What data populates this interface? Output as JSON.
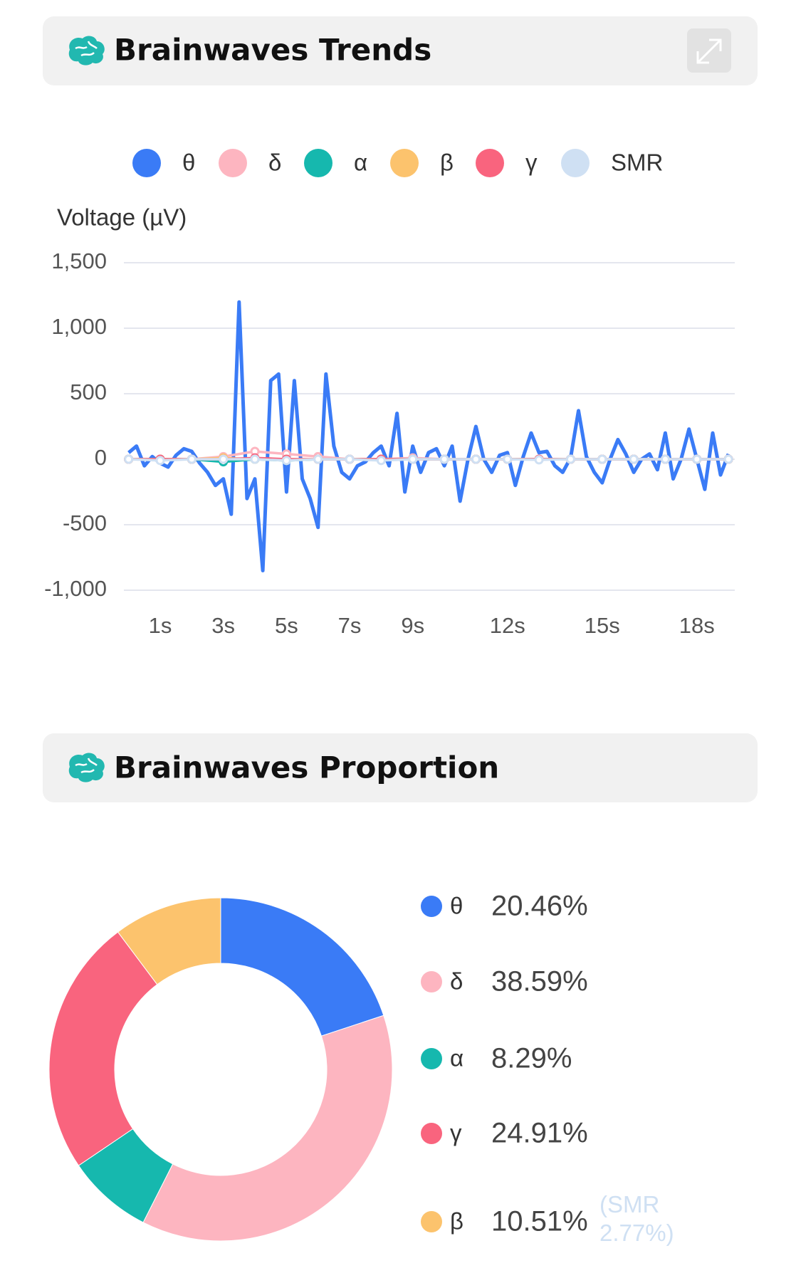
{
  "chart_data": [
    {
      "type": "line",
      "title": "Brainwaves Trends",
      "y_label": "Voltage (µV)",
      "xlim": [
        -0.15,
        19.2
      ],
      "xticks": [
        {
          "value": 1,
          "label": "1s"
        },
        {
          "value": 3,
          "label": "3s"
        },
        {
          "value": 5,
          "label": "5s"
        },
        {
          "value": 7,
          "label": "7s"
        },
        {
          "value": 9,
          "label": "9s"
        },
        {
          "value": 12,
          "label": "12s"
        },
        {
          "value": 15,
          "label": "15s"
        },
        {
          "value": 18,
          "label": "18s"
        }
      ],
      "ylim": [
        -1000,
        1500
      ],
      "yticks": [
        {
          "value": -1000,
          "label": "-1,000"
        },
        -500,
        0,
        500,
        {
          "value": 1000,
          "label": "1,000"
        },
        {
          "value": 1500,
          "label": "1,500"
        }
      ],
      "grid": true,
      "x": [
        0,
        1,
        2,
        3,
        4,
        5,
        6,
        7,
        8,
        9,
        10,
        11,
        12,
        13,
        14,
        15,
        16,
        17,
        18,
        19
      ],
      "series": [
        {
          "name": "θ",
          "color": "#3a7bf6",
          "x": [
            0,
            0.25,
            0.5,
            0.75,
            1,
            1.25,
            1.5,
            1.75,
            2,
            2.25,
            2.5,
            2.75,
            3,
            3.25,
            3.5,
            3.75,
            4,
            4.25,
            4.5,
            4.75,
            5,
            5.25,
            5.5,
            5.75,
            6,
            6.25,
            6.5,
            6.75,
            7,
            7.25,
            7.5,
            7.75,
            8,
            8.25,
            8.5,
            8.75,
            9,
            9.25,
            9.5,
            9.75,
            10,
            10.25,
            10.5,
            10.75,
            11,
            11.25,
            11.5,
            11.75,
            12,
            12.25,
            12.5,
            12.75,
            13,
            13.25,
            13.5,
            13.75,
            14,
            14.25,
            14.5,
            14.75,
            15,
            15.25,
            15.5,
            15.75,
            16,
            16.25,
            16.5,
            16.75,
            17,
            17.25,
            17.5,
            17.75,
            18,
            18.25,
            18.5,
            18.75,
            19
          ],
          "values": [
            50,
            100,
            -50,
            20,
            -30,
            -60,
            30,
            80,
            60,
            -30,
            -100,
            -200,
            -150,
            -420,
            1200,
            -300,
            -150,
            -850,
            600,
            650,
            -250,
            600,
            -150,
            -300,
            -520,
            650,
            100,
            -100,
            -150,
            -50,
            -20,
            50,
            100,
            -50,
            350,
            -250,
            100,
            -100,
            50,
            80,
            -50,
            100,
            -320,
            0,
            250,
            0,
            -100,
            30,
            50,
            -200,
            20,
            200,
            50,
            60,
            -50,
            -100,
            10,
            370,
            20,
            -100,
            -180,
            0,
            150,
            40,
            -100,
            0,
            40,
            -80,
            200,
            -150,
            0,
            230,
            0,
            -230,
            200,
            -120,
            40
          ]
        },
        {
          "name": "δ",
          "color": "#fdb5c0",
          "values": [
            0,
            0,
            0,
            20,
            60,
            40,
            20,
            0,
            0,
            10,
            0,
            0,
            0,
            0,
            0,
            0,
            0,
            0,
            0,
            0
          ]
        },
        {
          "name": "α",
          "color": "#16b8ae",
          "values": [
            0,
            0,
            0,
            -20,
            0,
            -10,
            0,
            0,
            0,
            0,
            0,
            0,
            0,
            0,
            0,
            0,
            0,
            0,
            0,
            0
          ]
        },
        {
          "name": "β",
          "color": "#fcc36d",
          "values": [
            0,
            0,
            0,
            10,
            0,
            0,
            0,
            0,
            0,
            0,
            0,
            0,
            0,
            0,
            0,
            0,
            0,
            0,
            0,
            0
          ]
        },
        {
          "name": "γ",
          "color": "#f9647e",
          "values": [
            0,
            0,
            0,
            0,
            10,
            0,
            0,
            0,
            0,
            0,
            0,
            0,
            0,
            0,
            0,
            0,
            0,
            0,
            0,
            0
          ]
        },
        {
          "name": "SMR",
          "color": "#cfe0f3",
          "values": [
            0,
            -10,
            0,
            0,
            0,
            -10,
            0,
            0,
            -10,
            0,
            0,
            0,
            0,
            -5,
            0,
            0,
            0,
            0,
            0,
            0
          ]
        }
      ]
    },
    {
      "type": "pie",
      "title": "Brainwaves Proportion",
      "donut": true,
      "categories": [
        "θ",
        "δ",
        "α",
        "γ",
        "β"
      ],
      "values": [
        20.46,
        38.59,
        8.29,
        24.91,
        10.51
      ],
      "value_labels": [
        "20.46%",
        "38.59%",
        "8.29%",
        "24.91%",
        "10.51%"
      ],
      "colors": [
        "#3a7bf6",
        "#fdb5c0",
        "#16b8ae",
        "#f9647e",
        "#fcc36d"
      ],
      "note": {
        "name": "SMR",
        "value": 2.77,
        "value_label": "(SMR 2.77%)"
      }
    }
  ]
}
